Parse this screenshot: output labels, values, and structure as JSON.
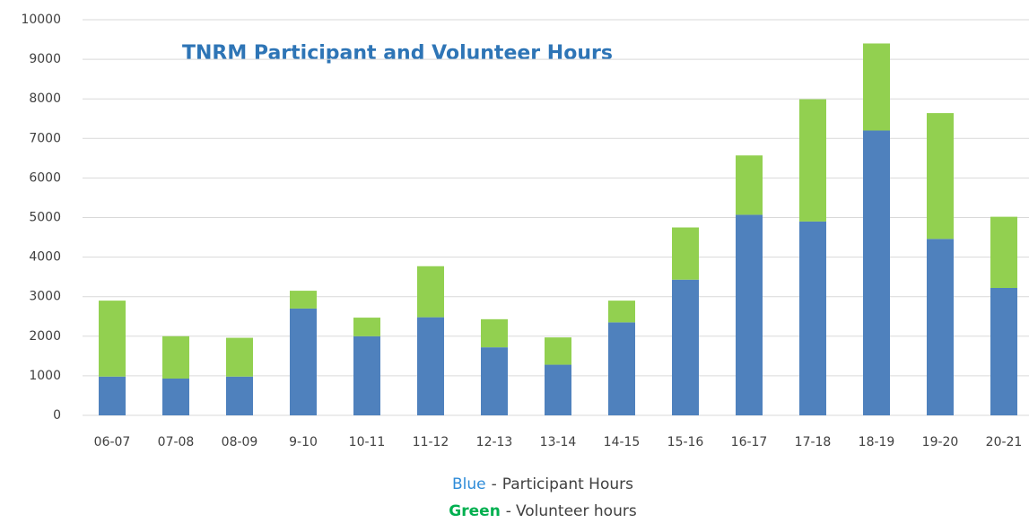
{
  "chart_data": {
    "type": "stacked_bar",
    "title": "TNRM Participant and Volunteer Hours",
    "categories": [
      "06-07",
      "07-08",
      "08-09",
      "9-10",
      "10-11",
      "11-12",
      "12-13",
      "13-14",
      "14-15",
      "15-16",
      "16-17",
      "17-18",
      "18-19",
      "19-20",
      "20-21"
    ],
    "series": [
      {
        "name": "Participant Hours",
        "key": "Blue",
        "key_color": "#2e8bd8",
        "color": "#4f81bd",
        "values": [
          980,
          930,
          980,
          2700,
          2000,
          2480,
          1720,
          1280,
          2350,
          3430,
          5070,
          4900,
          7200,
          4460,
          3220
        ]
      },
      {
        "name": "Volunteer hours",
        "key": "Green",
        "key_color": "#00b050",
        "color": "#92d050",
        "values": [
          1920,
          1070,
          980,
          450,
          470,
          1290,
          710,
          690,
          550,
          1320,
          1500,
          3090,
          2200,
          3180,
          1800
        ]
      }
    ],
    "legend_separator": "-",
    "ylim": [
      0,
      10000
    ],
    "yticks": [
      0,
      1000,
      2000,
      3000,
      4000,
      5000,
      6000,
      7000,
      8000,
      9000,
      10000
    ],
    "grid": true
  }
}
